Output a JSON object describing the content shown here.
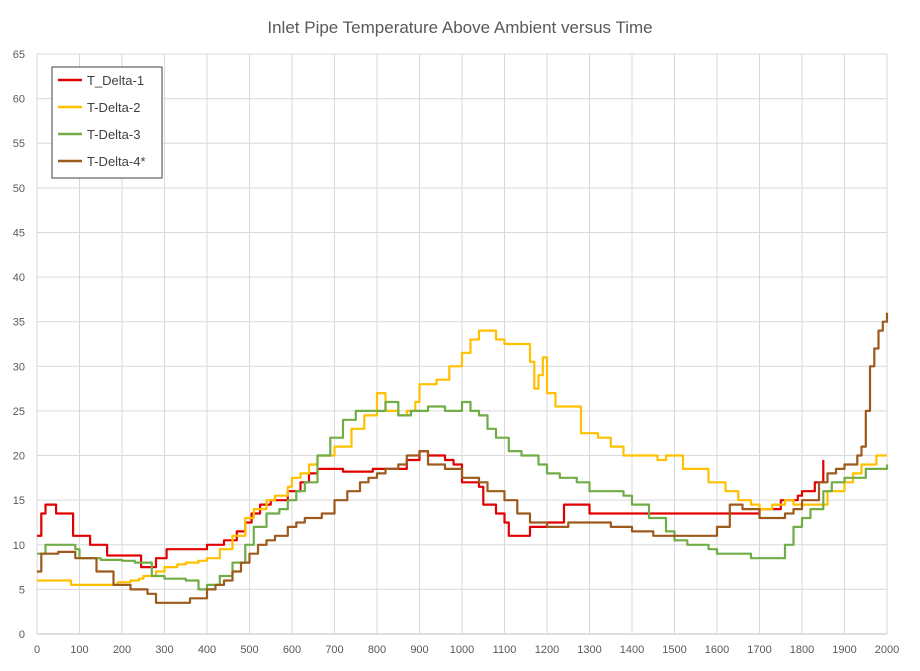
{
  "chart_data": {
    "type": "line",
    "title": "Inlet Pipe Temperature Above Ambient versus Time",
    "xlabel": "",
    "ylabel": "",
    "xlim": [
      0,
      2000
    ],
    "ylim": [
      0,
      65
    ],
    "x_ticks": [
      0,
      100,
      200,
      300,
      400,
      500,
      600,
      700,
      800,
      900,
      1000,
      1100,
      1200,
      1300,
      1400,
      1500,
      1600,
      1700,
      1800,
      1900,
      2000
    ],
    "y_ticks": [
      0,
      5,
      10,
      15,
      20,
      25,
      30,
      35,
      40,
      45,
      50,
      55,
      60,
      65
    ],
    "grid": true,
    "legend_position": "top-left",
    "series": [
      {
        "name": "T_Delta-1",
        "color": "#e00000",
        "points": [
          [
            0,
            11
          ],
          [
            10,
            13.5
          ],
          [
            20,
            14.5
          ],
          [
            40,
            14.5
          ],
          [
            45,
            13.5
          ],
          [
            80,
            13.5
          ],
          [
            85,
            11
          ],
          [
            120,
            11
          ],
          [
            125,
            10
          ],
          [
            160,
            10
          ],
          [
            165,
            8.8
          ],
          [
            240,
            8.8
          ],
          [
            245,
            7.5
          ],
          [
            270,
            7.5
          ],
          [
            280,
            8.5
          ],
          [
            300,
            8.5
          ],
          [
            305,
            9.5
          ],
          [
            330,
            9.5
          ],
          [
            340,
            9.5
          ],
          [
            380,
            9.5
          ],
          [
            400,
            10
          ],
          [
            430,
            10
          ],
          [
            440,
            10.5
          ],
          [
            470,
            11.5
          ],
          [
            490,
            12.5
          ],
          [
            505,
            13.5
          ],
          [
            525,
            14.5
          ],
          [
            550,
            15
          ],
          [
            580,
            15
          ],
          [
            590,
            16
          ],
          [
            600,
            16
          ],
          [
            620,
            17
          ],
          [
            640,
            18
          ],
          [
            660,
            18.5
          ],
          [
            700,
            18.5
          ],
          [
            720,
            18.2
          ],
          [
            760,
            18.2
          ],
          [
            790,
            18.5
          ],
          [
            850,
            18.5
          ],
          [
            870,
            19.5
          ],
          [
            900,
            20.5
          ],
          [
            920,
            20
          ],
          [
            960,
            19.5
          ],
          [
            980,
            19
          ],
          [
            1000,
            17
          ],
          [
            1040,
            16.5
          ],
          [
            1050,
            14.5
          ],
          [
            1080,
            13.5
          ],
          [
            1100,
            12.5
          ],
          [
            1110,
            11
          ],
          [
            1150,
            11
          ],
          [
            1160,
            12
          ],
          [
            1200,
            12.5
          ],
          [
            1240,
            14.5
          ],
          [
            1300,
            13.5
          ],
          [
            1400,
            13.5
          ],
          [
            1500,
            13.5
          ],
          [
            1600,
            13.5
          ],
          [
            1700,
            14
          ],
          [
            1750,
            15
          ],
          [
            1790,
            15.5
          ],
          [
            1800,
            16
          ],
          [
            1830,
            17
          ],
          [
            1850,
            19.5
          ]
        ]
      },
      {
        "name": "T-Delta-2",
        "color": "#ffc000",
        "points": [
          [
            0,
            6
          ],
          [
            70,
            6
          ],
          [
            80,
            5.5
          ],
          [
            180,
            5.5
          ],
          [
            190,
            5.8
          ],
          [
            220,
            6
          ],
          [
            240,
            6.2
          ],
          [
            250,
            6.5
          ],
          [
            280,
            7
          ],
          [
            300,
            7.5
          ],
          [
            330,
            7.8
          ],
          [
            350,
            8
          ],
          [
            380,
            8.2
          ],
          [
            400,
            8.5
          ],
          [
            430,
            9.5
          ],
          [
            460,
            11
          ],
          [
            490,
            13
          ],
          [
            510,
            14
          ],
          [
            540,
            15
          ],
          [
            560,
            15.5
          ],
          [
            590,
            16.5
          ],
          [
            600,
            17.5
          ],
          [
            620,
            18
          ],
          [
            640,
            19
          ],
          [
            660,
            20
          ],
          [
            700,
            21
          ],
          [
            740,
            23
          ],
          [
            770,
            24.5
          ],
          [
            800,
            27
          ],
          [
            820,
            25
          ],
          [
            850,
            24.5
          ],
          [
            870,
            25
          ],
          [
            890,
            26
          ],
          [
            900,
            28
          ],
          [
            940,
            28.5
          ],
          [
            970,
            30
          ],
          [
            1000,
            31.5
          ],
          [
            1020,
            33
          ],
          [
            1040,
            34
          ],
          [
            1080,
            33
          ],
          [
            1100,
            32.5
          ],
          [
            1150,
            32.5
          ],
          [
            1160,
            30.5
          ],
          [
            1170,
            27.5
          ],
          [
            1180,
            29
          ],
          [
            1190,
            31
          ],
          [
            1200,
            27
          ],
          [
            1220,
            25.5
          ],
          [
            1260,
            25.5
          ],
          [
            1280,
            22.5
          ],
          [
            1320,
            22
          ],
          [
            1350,
            21
          ],
          [
            1380,
            20
          ],
          [
            1440,
            20
          ],
          [
            1460,
            19.5
          ],
          [
            1480,
            20
          ],
          [
            1500,
            20
          ],
          [
            1520,
            18.5
          ],
          [
            1570,
            18.5
          ],
          [
            1580,
            17
          ],
          [
            1620,
            16
          ],
          [
            1650,
            15
          ],
          [
            1680,
            14.5
          ],
          [
            1700,
            14
          ],
          [
            1730,
            14.5
          ],
          [
            1760,
            15
          ],
          [
            1780,
            14.5
          ],
          [
            1800,
            14.5
          ],
          [
            1840,
            14.5
          ],
          [
            1860,
            16
          ],
          [
            1880,
            16
          ],
          [
            1900,
            17
          ],
          [
            1920,
            18
          ],
          [
            1940,
            19
          ],
          [
            1960,
            19
          ],
          [
            1975,
            20
          ],
          [
            2000,
            20
          ]
        ]
      },
      {
        "name": "T-Delta-3",
        "color": "#70ad47",
        "points": [
          [
            0,
            9
          ],
          [
            20,
            10
          ],
          [
            90,
            9.5
          ],
          [
            100,
            8.5
          ],
          [
            150,
            8.3
          ],
          [
            200,
            8.2
          ],
          [
            230,
            8
          ],
          [
            270,
            6.5
          ],
          [
            300,
            6.2
          ],
          [
            350,
            6
          ],
          [
            380,
            5
          ],
          [
            400,
            5.5
          ],
          [
            430,
            6.5
          ],
          [
            460,
            8
          ],
          [
            490,
            10
          ],
          [
            510,
            12
          ],
          [
            540,
            13.5
          ],
          [
            570,
            14
          ],
          [
            590,
            15
          ],
          [
            610,
            16
          ],
          [
            630,
            17
          ],
          [
            660,
            20
          ],
          [
            690,
            22
          ],
          [
            720,
            24
          ],
          [
            750,
            25
          ],
          [
            790,
            25
          ],
          [
            820,
            26
          ],
          [
            850,
            24.5
          ],
          [
            880,
            25
          ],
          [
            920,
            25.5
          ],
          [
            960,
            25
          ],
          [
            980,
            25
          ],
          [
            1000,
            26
          ],
          [
            1020,
            25
          ],
          [
            1040,
            24.5
          ],
          [
            1060,
            23
          ],
          [
            1080,
            22
          ],
          [
            1110,
            20.5
          ],
          [
            1140,
            20
          ],
          [
            1180,
            19
          ],
          [
            1200,
            18
          ],
          [
            1230,
            17.5
          ],
          [
            1270,
            17
          ],
          [
            1300,
            16
          ],
          [
            1360,
            16
          ],
          [
            1380,
            15.5
          ],
          [
            1400,
            14.5
          ],
          [
            1440,
            13
          ],
          [
            1480,
            11.5
          ],
          [
            1500,
            10.5
          ],
          [
            1530,
            10
          ],
          [
            1580,
            9.5
          ],
          [
            1600,
            9
          ],
          [
            1650,
            9
          ],
          [
            1680,
            8.5
          ],
          [
            1720,
            8.5
          ],
          [
            1740,
            8.5
          ],
          [
            1760,
            10
          ],
          [
            1780,
            12
          ],
          [
            1800,
            13
          ],
          [
            1820,
            14
          ],
          [
            1850,
            16
          ],
          [
            1870,
            17
          ],
          [
            1900,
            17.5
          ],
          [
            1950,
            18.5
          ],
          [
            2000,
            19
          ]
        ]
      },
      {
        "name": "T-Delta-4*",
        "color": "#9c5a1c",
        "points": [
          [
            0,
            7
          ],
          [
            10,
            9
          ],
          [
            50,
            9.2
          ],
          [
            90,
            8.5
          ],
          [
            140,
            7
          ],
          [
            180,
            5.5
          ],
          [
            220,
            5
          ],
          [
            250,
            5
          ],
          [
            260,
            4.5
          ],
          [
            280,
            3.5
          ],
          [
            350,
            3.5
          ],
          [
            360,
            4
          ],
          [
            400,
            5
          ],
          [
            420,
            5.5
          ],
          [
            440,
            6
          ],
          [
            460,
            7
          ],
          [
            480,
            8
          ],
          [
            500,
            9
          ],
          [
            520,
            10
          ],
          [
            540,
            10.5
          ],
          [
            560,
            11
          ],
          [
            590,
            12
          ],
          [
            610,
            12.5
          ],
          [
            630,
            13
          ],
          [
            670,
            13.5
          ],
          [
            700,
            15
          ],
          [
            730,
            16
          ],
          [
            760,
            17
          ],
          [
            780,
            17.5
          ],
          [
            800,
            18
          ],
          [
            820,
            18.5
          ],
          [
            850,
            19
          ],
          [
            870,
            20
          ],
          [
            900,
            20.5
          ],
          [
            920,
            19
          ],
          [
            960,
            18.5
          ],
          [
            980,
            18.5
          ],
          [
            1000,
            17.5
          ],
          [
            1040,
            17
          ],
          [
            1060,
            16
          ],
          [
            1100,
            15
          ],
          [
            1130,
            13.5
          ],
          [
            1160,
            12.5
          ],
          [
            1200,
            12
          ],
          [
            1250,
            12.5
          ],
          [
            1300,
            12.5
          ],
          [
            1350,
            12
          ],
          [
            1400,
            11.5
          ],
          [
            1450,
            11
          ],
          [
            1500,
            11
          ],
          [
            1550,
            11
          ],
          [
            1600,
            12
          ],
          [
            1630,
            14.5
          ],
          [
            1660,
            14
          ],
          [
            1700,
            13
          ],
          [
            1740,
            13
          ],
          [
            1760,
            13.5
          ],
          [
            1780,
            14
          ],
          [
            1800,
            15
          ],
          [
            1820,
            15
          ],
          [
            1840,
            17
          ],
          [
            1860,
            18
          ],
          [
            1880,
            18.5
          ],
          [
            1900,
            19
          ],
          [
            1920,
            19
          ],
          [
            1930,
            20
          ],
          [
            1940,
            21
          ],
          [
            1950,
            25
          ],
          [
            1960,
            30
          ],
          [
            1970,
            32
          ],
          [
            1980,
            34
          ],
          [
            1990,
            35
          ],
          [
            2000,
            36
          ]
        ]
      }
    ]
  }
}
